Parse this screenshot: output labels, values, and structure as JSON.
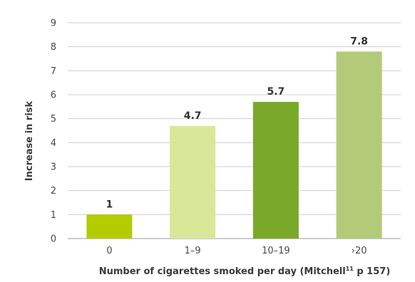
{
  "chart_data": {
    "type": "bar",
    "categories": [
      "0",
      "1–9",
      "10–19",
      "›20"
    ],
    "values": [
      1,
      4.7,
      5.7,
      7.8
    ],
    "value_labels": [
      "1",
      "4.7",
      "5.7",
      "7.8"
    ],
    "colors": [
      "#b3cc00",
      "#d9e79a",
      "#7aa929",
      "#b3cb78"
    ],
    "title": "",
    "xlabel": "Number of cigarettes smoked per day (Mitchell",
    "xlabel_superscript": "11",
    "xlabel_suffix": " p 157)",
    "ylabel": "Increase in risk",
    "ylim": [
      0,
      9
    ],
    "yticks": [
      "0",
      "1",
      "2",
      "3",
      "4",
      "5",
      "6",
      "7",
      "8",
      "9"
    ],
    "grid": true,
    "legend": "none"
  }
}
